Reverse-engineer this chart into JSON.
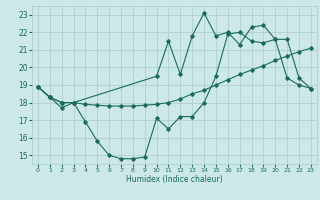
{
  "xlabel": "Humidex (Indice chaleur)",
  "bg_color": "#cce8e8",
  "grid_color": "#aacccc",
  "line_color": "#1a6b5a",
  "xlim": [
    -0.5,
    23.5
  ],
  "ylim": [
    14.5,
    23.5
  ],
  "yticks": [
    15,
    16,
    17,
    18,
    19,
    20,
    21,
    22,
    23
  ],
  "xticks": [
    0,
    1,
    2,
    3,
    4,
    5,
    6,
    7,
    8,
    9,
    10,
    11,
    12,
    13,
    14,
    15,
    16,
    17,
    18,
    19,
    20,
    21,
    22,
    23
  ],
  "line1_x": [
    0,
    1,
    2,
    3,
    4,
    5,
    6,
    7,
    8,
    9,
    10,
    11,
    12,
    13,
    14,
    15,
    16,
    17,
    18,
    19,
    20,
    21,
    22,
    23
  ],
  "line1_y": [
    18.9,
    18.3,
    18.0,
    18.0,
    17.9,
    17.85,
    17.8,
    17.8,
    17.8,
    17.85,
    17.9,
    18.0,
    18.2,
    18.5,
    18.7,
    19.0,
    19.3,
    19.6,
    19.85,
    20.1,
    20.4,
    20.65,
    20.9,
    21.1
  ],
  "line2_x": [
    0,
    1,
    2,
    3,
    4,
    5,
    6,
    7,
    8,
    9,
    10,
    11,
    12,
    13,
    14,
    15,
    16,
    17,
    18,
    19,
    20,
    21,
    22,
    23
  ],
  "line2_y": [
    18.9,
    18.3,
    17.7,
    18.0,
    16.9,
    15.8,
    15.0,
    14.8,
    14.8,
    14.9,
    17.1,
    16.5,
    17.2,
    17.2,
    18.0,
    19.5,
    21.9,
    22.0,
    21.5,
    21.4,
    21.6,
    19.4,
    19.0,
    18.8
  ],
  "line3_x": [
    0,
    1,
    2,
    3,
    10,
    11,
    12,
    13,
    14,
    15,
    16,
    17,
    18,
    19,
    20,
    21,
    22,
    23
  ],
  "line3_y": [
    18.9,
    18.3,
    18.0,
    18.0,
    19.5,
    21.5,
    19.6,
    21.8,
    23.1,
    21.8,
    22.0,
    21.3,
    22.3,
    22.4,
    21.6,
    21.6,
    19.4,
    18.8
  ]
}
